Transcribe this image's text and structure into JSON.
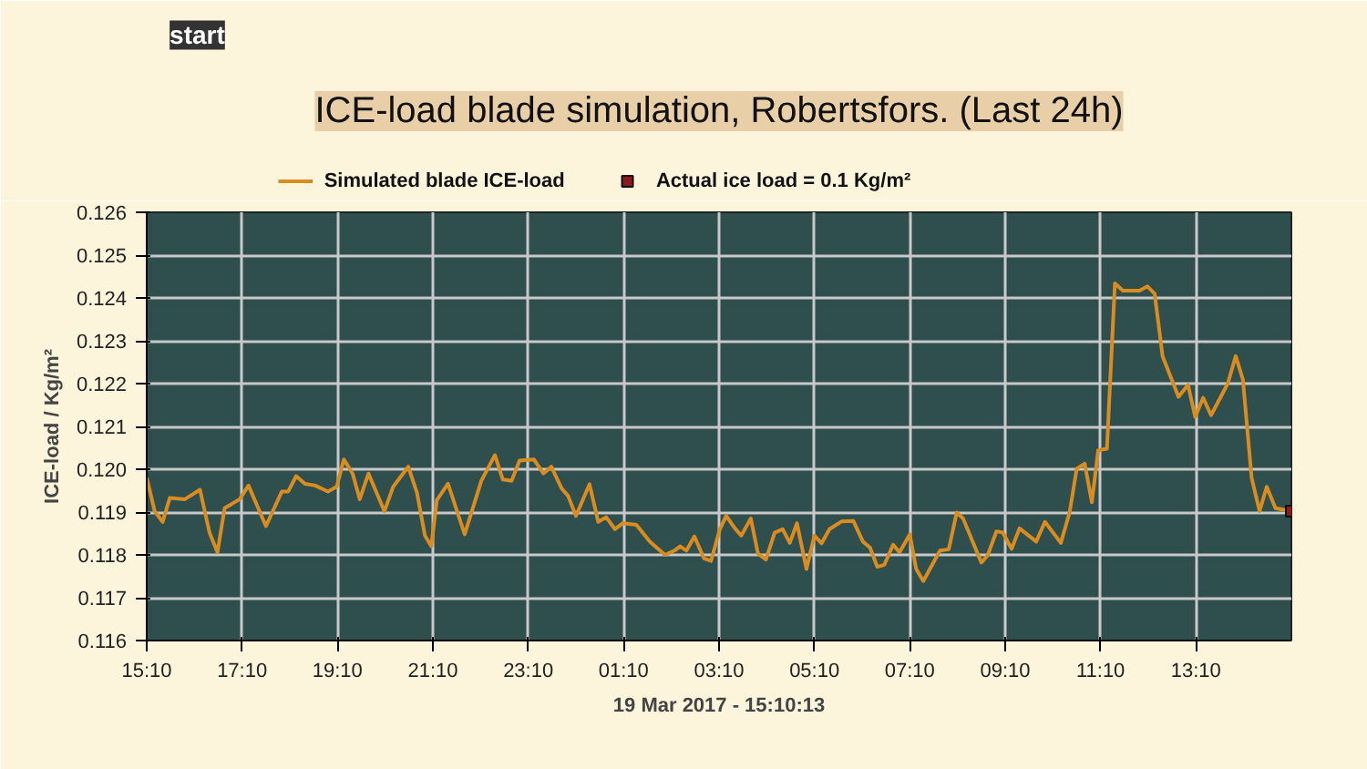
{
  "chart_data": {
    "type": "line",
    "title": "ICE-load blade simulation, Robertsfors. (Last 24h)",
    "xlabel": "19 Mar 2017 - 15:10:13",
    "ylabel": "ICE-load / Kg/m²",
    "annotations": [
      "start"
    ],
    "xlim": [
      "2017-03-18T15:10",
      "2017-03-19T15:10"
    ],
    "xticks": [
      {
        "value": "2017-03-18T15:10",
        "label": "15:10"
      },
      {
        "value": "2017-03-18T17:10",
        "label": "17:10"
      },
      {
        "value": "2017-03-18T19:10",
        "label": "19:10"
      },
      {
        "value": "2017-03-18T21:10",
        "label": "21:10"
      },
      {
        "value": "2017-03-18T23:10",
        "label": "23:10"
      },
      {
        "value": "2017-03-19T01:10",
        "label": "01:10"
      },
      {
        "value": "2017-03-19T03:10",
        "label": "03:10"
      },
      {
        "value": "2017-03-19T05:10",
        "label": "05:10"
      },
      {
        "value": "2017-03-19T07:10",
        "label": "07:10"
      },
      {
        "value": "2017-03-19T09:10",
        "label": "09:10"
      },
      {
        "value": "2017-03-19T11:10",
        "label": "11:10"
      },
      {
        "value": "2017-03-19T13:10",
        "label": "13:10"
      }
    ],
    "ylim": [
      0.116,
      0.126
    ],
    "yticks": [
      0.116,
      0.117,
      0.118,
      0.119,
      {
        "value": 0.12,
        "label": "0.120"
      },
      0.121,
      0.122,
      0.123,
      0.124,
      0.125,
      0.126
    ],
    "grid": true,
    "legend": "top",
    "series": [
      {
        "name": "Simulated blade ICE-load",
        "color": "#d98c1f",
        "x": [
          "2017-03-18T15:10",
          "2017-03-18T15:20",
          "2017-03-18T15:30",
          "2017-03-18T15:39",
          "2017-03-18T15:58",
          "2017-03-18T16:17",
          "2017-03-18T16:29",
          "2017-03-18T16:39",
          "2017-03-18T16:48",
          "2017-03-18T17:07",
          "2017-03-18T17:18",
          "2017-03-18T17:40",
          "2017-03-18T18:00",
          "2017-03-18T18:08",
          "2017-03-18T18:18",
          "2017-03-18T18:29",
          "2017-03-18T18:42",
          "2017-03-18T18:58",
          "2017-03-18T19:09",
          "2017-03-18T19:18",
          "2017-03-18T19:29",
          "2017-03-18T19:38",
          "2017-03-18T19:49",
          "2017-03-18T20:09",
          "2017-03-18T20:20",
          "2017-03-18T20:39",
          "2017-03-18T20:50",
          "2017-03-18T21:00",
          "2017-03-18T21:08",
          "2017-03-18T21:15",
          "2017-03-18T21:29",
          "2017-03-18T21:50",
          "2017-03-18T22:11",
          "2017-03-18T22:28",
          "2017-03-18T22:38",
          "2017-03-18T22:49",
          "2017-03-18T22:59",
          "2017-03-18T23:17",
          "2017-03-18T23:29",
          "2017-03-18T23:39",
          "2017-03-18T23:52",
          "2017-03-19T00:00",
          "2017-03-19T00:10",
          "2017-03-19T00:27",
          "2017-03-19T00:38",
          "2017-03-19T00:48",
          "2017-03-19T00:59",
          "2017-03-19T01:09",
          "2017-03-19T01:26",
          "2017-03-19T01:43",
          "2017-03-19T02:02",
          "2017-03-19T02:14",
          "2017-03-19T02:21",
          "2017-03-19T02:29",
          "2017-03-19T02:39",
          "2017-03-19T02:51",
          "2017-03-19T03:00",
          "2017-03-19T03:11",
          "2017-03-19T03:19",
          "2017-03-19T03:30",
          "2017-03-19T03:38",
          "2017-03-19T03:50",
          "2017-03-19T03:59",
          "2017-03-19T04:09",
          "2017-03-19T04:20",
          "2017-03-19T04:30",
          "2017-03-19T04:39",
          "2017-03-19T04:48",
          "2017-03-19T05:00",
          "2017-03-19T05:10",
          "2017-03-19T05:19",
          "2017-03-19T05:29",
          "2017-03-19T05:44",
          "2017-03-19T05:59",
          "2017-03-19T06:11",
          "2017-03-19T06:20",
          "2017-03-19T06:29",
          "2017-03-19T06:38",
          "2017-03-19T06:49",
          "2017-03-19T06:57",
          "2017-03-19T07:10",
          "2017-03-19T07:18",
          "2017-03-19T07:27",
          "2017-03-19T07:48",
          "2017-03-19T07:59",
          "2017-03-19T08:09",
          "2017-03-19T08:17",
          "2017-03-19T08:40",
          "2017-03-19T08:48",
          "2017-03-19T08:59",
          "2017-03-19T09:07",
          "2017-03-19T09:18",
          "2017-03-19T09:28",
          "2017-03-19T09:49",
          "2017-03-19T10:00",
          "2017-03-19T10:20",
          "2017-03-19T10:31",
          "2017-03-19T10:40",
          "2017-03-19T10:50",
          "2017-03-19T10:59",
          "2017-03-19T11:07",
          "2017-03-19T11:18",
          "2017-03-19T11:28",
          "2017-03-19T11:38",
          "2017-03-19T11:59",
          "2017-03-19T12:09",
          "2017-03-19T12:18",
          "2017-03-19T12:28",
          "2017-03-19T12:48",
          "2017-03-19T13:00",
          "2017-03-19T13:09",
          "2017-03-19T13:19",
          "2017-03-19T13:29",
          "2017-03-19T13:50",
          "2017-03-19T14:00",
          "2017-03-19T14:09",
          "2017-03-19T14:20",
          "2017-03-19T14:30",
          "2017-03-19T14:39",
          "2017-03-19T14:50",
          "2017-03-19T15:10"
        ],
        "values": [
          0.1198,
          0.11902,
          0.11877,
          0.11933,
          0.1193,
          0.11952,
          0.11852,
          0.11806,
          0.11909,
          0.1193,
          0.11962,
          0.11867,
          0.11948,
          0.11948,
          0.11984,
          0.11966,
          0.11962,
          0.11948,
          0.11959,
          0.12023,
          0.1199,
          0.1193,
          0.1199,
          0.11902,
          0.11959,
          0.12006,
          0.11945,
          0.11845,
          0.1182,
          0.11928,
          0.11966,
          0.11848,
          0.11973,
          0.12033,
          0.11976,
          0.11973,
          0.1202,
          0.12023,
          0.1199,
          0.12006,
          0.11955,
          0.11938,
          0.11891,
          0.11965,
          0.11877,
          0.11888,
          0.1186,
          0.11874,
          0.1187,
          0.11831,
          0.118,
          0.1181,
          0.1182,
          0.1181,
          0.11843,
          0.11792,
          0.11786,
          0.1186,
          0.11891,
          0.11862,
          0.11845,
          0.11885,
          0.11803,
          0.11789,
          0.11852,
          0.1186,
          0.11828,
          0.11874,
          0.11767,
          0.11845,
          0.11827,
          0.1186,
          0.11878,
          0.11879,
          0.11831,
          0.11817,
          0.11772,
          0.11777,
          0.11824,
          0.11806,
          0.11848,
          0.11767,
          0.11739,
          0.1181,
          0.11813,
          0.11899,
          0.11885,
          0.11782,
          0.11799,
          0.11855,
          0.11852,
          0.11814,
          0.11862,
          0.11831,
          0.11877,
          0.11828,
          0.11899,
          0.12001,
          0.12013,
          0.11923,
          0.12044,
          0.12048,
          0.12434,
          0.12417,
          0.12417,
          0.12427,
          0.1241,
          0.12264,
          0.12169,
          0.12197,
          0.12122,
          0.12167,
          0.12126,
          0.122,
          0.12264,
          0.1221,
          0.1198,
          0.11902,
          0.11959,
          0.11909,
          0.11902
        ]
      },
      {
        "name": "Actual ice load = 0.1 Kg/m²",
        "type": "scatter",
        "marker": "square",
        "color": "#8b1a1a",
        "x": [
          "2017-03-19T15:10"
        ],
        "values": [
          0.11902
        ]
      }
    ]
  }
}
